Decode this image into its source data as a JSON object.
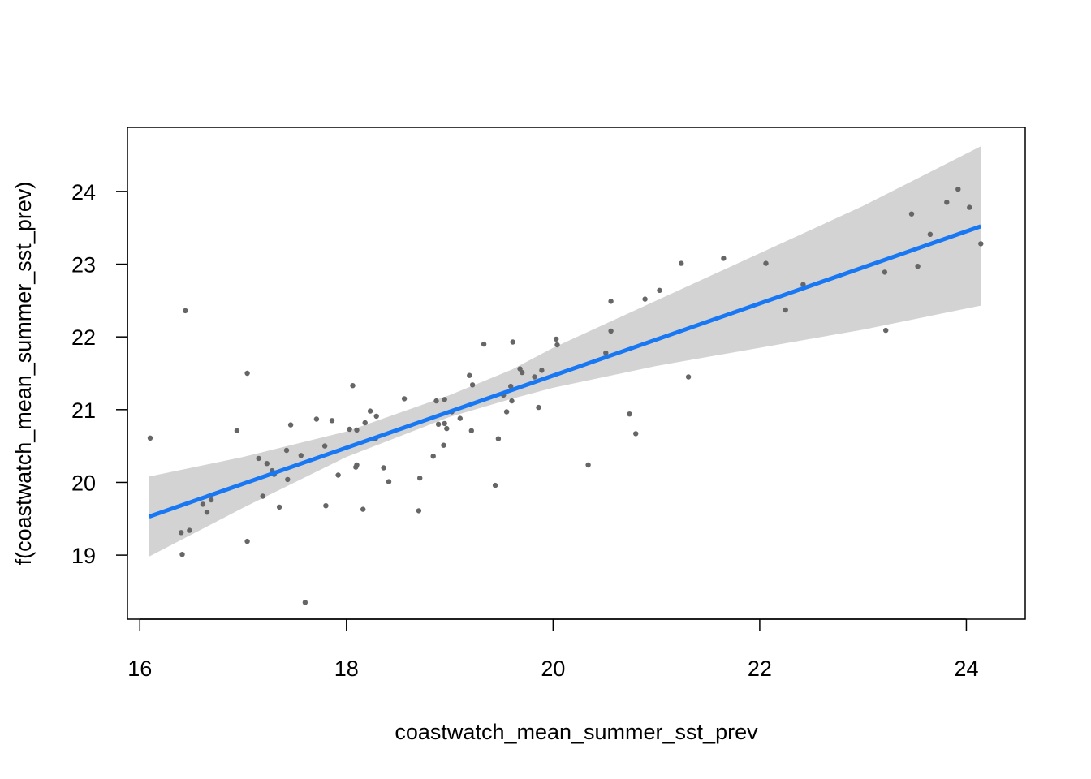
{
  "chart_data": {
    "type": "scatter",
    "title": "",
    "xlabel": "coastwatch_mean_summer_sst_prev",
    "ylabel": "f(coastwatch_mean_summer_sst_prev)",
    "xlim": [
      15.88,
      24.57
    ],
    "ylim": [
      18.12,
      24.88
    ],
    "x_ticks": [
      16,
      18,
      20,
      22,
      24
    ],
    "y_ticks": [
      19,
      20,
      21,
      22,
      23,
      24
    ],
    "x_tick_labels": [
      "16",
      "18",
      "20",
      "22",
      "24"
    ],
    "y_tick_labels": [
      "19",
      "20",
      "21",
      "22",
      "23",
      "24"
    ],
    "grid": false,
    "legend": "none",
    "colors": {
      "points": "#666666",
      "fit_line": "#1877F2",
      "confidence_band": "#D3D3D3",
      "frame": "#000000"
    },
    "fit": {
      "x": [
        16.09,
        24.14
      ],
      "y": [
        19.53,
        23.52
      ]
    },
    "confidence_band": {
      "x": [
        16.09,
        17.0,
        18.0,
        19.0,
        19.6,
        20.0,
        21.0,
        22.0,
        23.0,
        24.14
      ],
      "lower": [
        18.98,
        19.65,
        20.35,
        20.9,
        21.15,
        21.3,
        21.6,
        21.85,
        22.1,
        22.43
      ],
      "upper": [
        20.08,
        20.35,
        20.7,
        21.2,
        21.55,
        21.85,
        22.5,
        23.15,
        23.8,
        24.62
      ]
    },
    "points": [
      [
        16.1,
        20.61
      ],
      [
        16.4,
        19.31
      ],
      [
        16.41,
        19.01
      ],
      [
        16.44,
        22.36
      ],
      [
        16.48,
        19.34
      ],
      [
        16.61,
        19.7
      ],
      [
        16.65,
        19.59
      ],
      [
        16.69,
        19.76
      ],
      [
        16.94,
        20.71
      ],
      [
        17.04,
        21.5
      ],
      [
        17.04,
        19.19
      ],
      [
        17.15,
        20.33
      ],
      [
        17.19,
        19.81
      ],
      [
        17.23,
        20.26
      ],
      [
        17.28,
        20.16
      ],
      [
        17.3,
        20.11
      ],
      [
        17.35,
        19.66
      ],
      [
        17.42,
        20.44
      ],
      [
        17.43,
        20.04
      ],
      [
        17.46,
        20.79
      ],
      [
        17.56,
        20.37
      ],
      [
        17.6,
        18.35
      ],
      [
        17.71,
        20.87
      ],
      [
        17.79,
        20.5
      ],
      [
        17.8,
        19.68
      ],
      [
        17.86,
        20.85
      ],
      [
        17.92,
        20.1
      ],
      [
        18.03,
        20.73
      ],
      [
        18.06,
        21.33
      ],
      [
        18.09,
        20.21
      ],
      [
        18.1,
        20.24
      ],
      [
        18.1,
        20.72
      ],
      [
        18.16,
        19.63
      ],
      [
        18.18,
        20.82
      ],
      [
        18.23,
        20.98
      ],
      [
        18.28,
        20.6
      ],
      [
        18.29,
        20.91
      ],
      [
        18.36,
        20.2
      ],
      [
        18.41,
        20.01
      ],
      [
        18.56,
        21.15
      ],
      [
        18.7,
        19.61
      ],
      [
        18.71,
        20.06
      ],
      [
        18.84,
        20.36
      ],
      [
        18.87,
        21.12
      ],
      [
        18.89,
        20.8
      ],
      [
        18.94,
        20.51
      ],
      [
        18.95,
        20.81
      ],
      [
        18.95,
        21.14
      ],
      [
        18.97,
        20.74
      ],
      [
        19.02,
        20.97
      ],
      [
        19.1,
        20.88
      ],
      [
        19.19,
        21.47
      ],
      [
        19.21,
        20.71
      ],
      [
        19.22,
        21.34
      ],
      [
        19.33,
        21.9
      ],
      [
        19.44,
        19.96
      ],
      [
        19.47,
        20.6
      ],
      [
        19.52,
        21.2
      ],
      [
        19.55,
        20.97
      ],
      [
        19.59,
        21.32
      ],
      [
        19.6,
        21.12
      ],
      [
        19.61,
        21.93
      ],
      [
        19.68,
        21.56
      ],
      [
        19.7,
        21.51
      ],
      [
        19.82,
        21.45
      ],
      [
        19.86,
        21.03
      ],
      [
        19.89,
        21.54
      ],
      [
        20.03,
        21.97
      ],
      [
        20.04,
        21.89
      ],
      [
        20.34,
        20.24
      ],
      [
        20.51,
        21.78
      ],
      [
        20.56,
        22.08
      ],
      [
        20.56,
        22.49
      ],
      [
        20.74,
        20.94
      ],
      [
        20.8,
        20.67
      ],
      [
        20.89,
        22.52
      ],
      [
        21.03,
        22.64
      ],
      [
        21.24,
        23.01
      ],
      [
        21.31,
        21.45
      ],
      [
        21.65,
        23.08
      ],
      [
        22.06,
        23.01
      ],
      [
        22.25,
        22.37
      ],
      [
        22.42,
        22.72
      ],
      [
        23.21,
        22.89
      ],
      [
        23.22,
        22.09
      ],
      [
        23.47,
        23.69
      ],
      [
        23.53,
        22.97
      ],
      [
        23.65,
        23.41
      ],
      [
        23.81,
        23.85
      ],
      [
        23.92,
        24.03
      ],
      [
        24.03,
        23.78
      ],
      [
        24.14,
        23.28
      ]
    ]
  }
}
